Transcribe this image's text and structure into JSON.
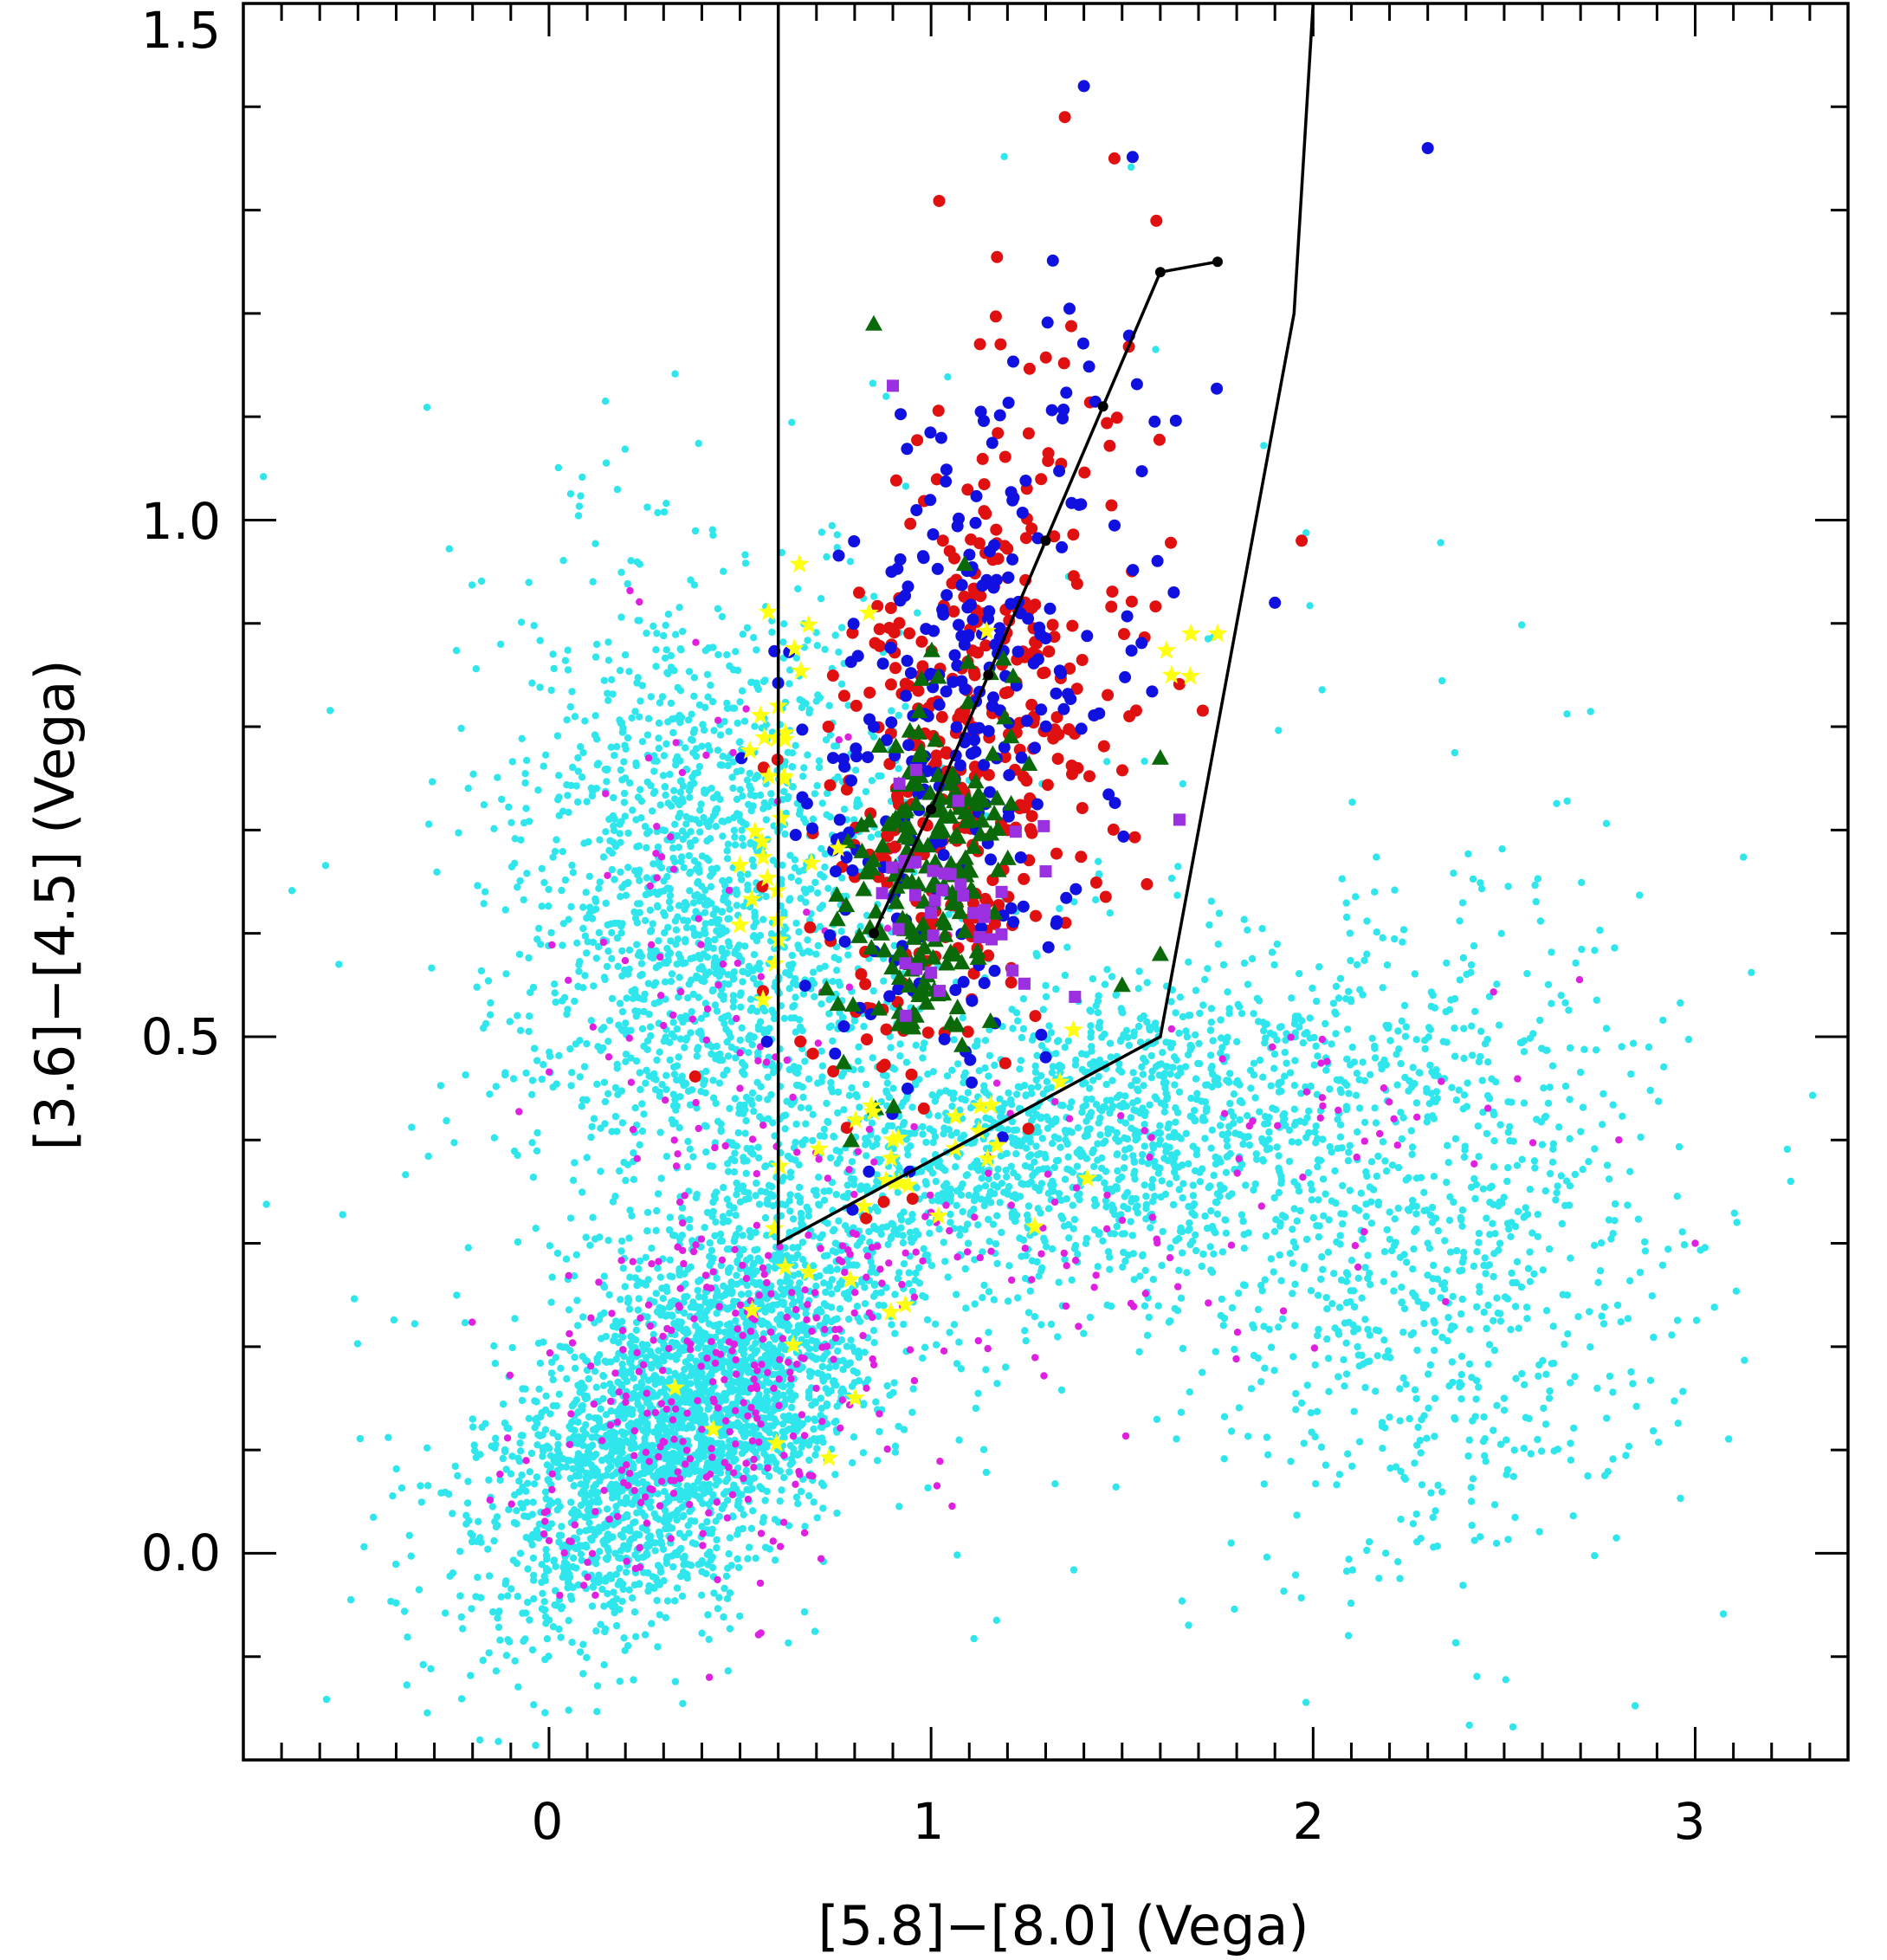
{
  "chart_data": {
    "type": "scatter",
    "title": "",
    "xlabel": "[5.8]−[8.0]  (Vega)",
    "ylabel": "[3.6]−[4.5]  (Vega)",
    "xlim": [
      -0.8,
      3.4
    ],
    "ylim": [
      -0.2,
      1.5
    ],
    "x_ticks": [
      "0",
      "1",
      "2",
      "3"
    ],
    "y_ticks": [
      "0.0",
      "0.5",
      "1.0",
      "1.5"
    ],
    "grid": false,
    "legend": "none",
    "colors": {
      "field": "#2fe6ec",
      "field_magenta": "#e020e0",
      "red": "#e01010",
      "blue": "#1010e0",
      "green": "#0a6a0a",
      "purple": "#9a30e0",
      "yellow": "#ffff10",
      "line": "#000000"
    },
    "boundary": {
      "x": [
        0.6,
        0.6,
        1.6,
        1.95,
        2.0
      ],
      "y": [
        1.5,
        0.3,
        0.5,
        1.2,
        1.5
      ]
    },
    "track": {
      "x": [
        0.85,
        1.0,
        1.15,
        1.3,
        1.45,
        1.6,
        1.75
      ],
      "y": [
        0.6,
        0.72,
        0.85,
        0.98,
        1.11,
        1.24,
        1.25
      ]
    },
    "series": [
      {
        "marker": "dot",
        "color": "field",
        "count": 7000,
        "points": [
          {
            "x": 0.3,
            "y": 0.07
          },
          {
            "x": 0.45,
            "y": 0.2
          },
          {
            "x": 0.75,
            "y": 0.3
          },
          {
            "x": 0.3,
            "y": 0.62
          },
          {
            "x": 1.6,
            "y": 0.4
          },
          {
            "x": 2.3,
            "y": 0.3
          },
          {
            "x": 2.5,
            "y": 0.15
          },
          {
            "x": -0.55,
            "y": 0.57
          },
          {
            "x": 3.25,
            "y": 0.36
          }
        ]
      },
      {
        "marker": "dot",
        "color": "field_magenta",
        "count": 500,
        "points": [
          {
            "x": 0.4,
            "y": 0.12
          },
          {
            "x": 0.5,
            "y": 0.45
          },
          {
            "x": 1.0,
            "y": 0.33
          },
          {
            "x": 2.8,
            "y": 0.4
          },
          {
            "x": 3.0,
            "y": 0.3
          }
        ]
      },
      {
        "marker": "circle",
        "color": "red",
        "count": 400,
        "points": [
          {
            "x": 1.0,
            "y": 0.85
          },
          {
            "x": 1.2,
            "y": 0.7
          },
          {
            "x": 1.35,
            "y": 1.39
          },
          {
            "x": 1.48,
            "y": 1.35
          },
          {
            "x": 1.97,
            "y": 0.98
          }
        ]
      },
      {
        "marker": "circle",
        "color": "blue",
        "count": 300,
        "points": [
          {
            "x": 0.85,
            "y": 0.8
          },
          {
            "x": 1.4,
            "y": 1.42
          },
          {
            "x": 2.3,
            "y": 1.36
          },
          {
            "x": 1.9,
            "y": 0.92
          },
          {
            "x": 1.3,
            "y": 0.48
          }
        ]
      },
      {
        "marker": "triangle",
        "color": "green",
        "count": 200,
        "points": [
          {
            "x": 0.85,
            "y": 1.19
          },
          {
            "x": 0.95,
            "y": 0.65
          },
          {
            "x": 1.5,
            "y": 0.55
          },
          {
            "x": 1.6,
            "y": 0.58
          },
          {
            "x": 1.6,
            "y": 0.77
          }
        ]
      },
      {
        "marker": "square",
        "color": "purple",
        "count": 40,
        "points": [
          {
            "x": 0.9,
            "y": 1.13
          },
          {
            "x": 1.0,
            "y": 0.62
          },
          {
            "x": 1.3,
            "y": 0.66
          },
          {
            "x": 1.65,
            "y": 0.71
          }
        ]
      },
      {
        "marker": "star",
        "color": "yellow",
        "count": 75,
        "points": [
          {
            "x": 0.6,
            "y": 0.82
          },
          {
            "x": 0.9,
            "y": 0.4
          },
          {
            "x": 1.68,
            "y": 0.89
          },
          {
            "x": 1.75,
            "y": 0.89
          },
          {
            "x": 0.33,
            "y": 0.16
          },
          {
            "x": 0.43,
            "y": 0.12
          }
        ]
      }
    ]
  }
}
